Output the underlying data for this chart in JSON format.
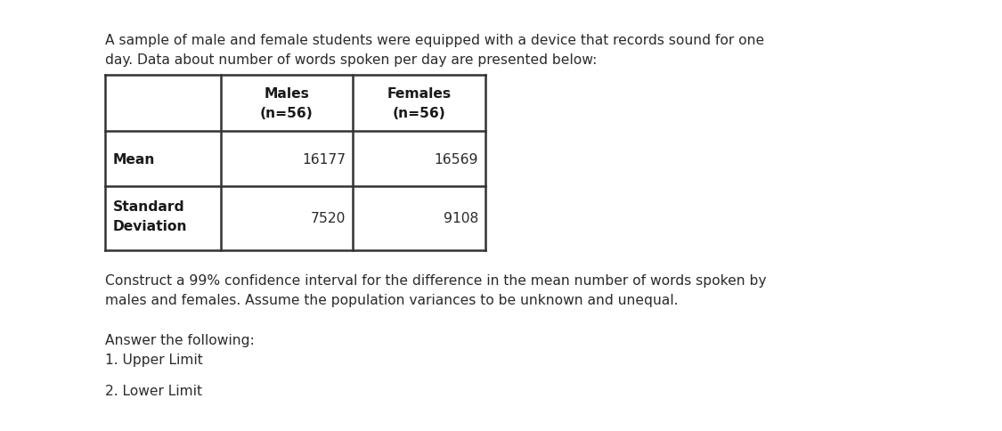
{
  "intro_text_line1": "A sample of male and female students were equipped with a device that records sound for one",
  "intro_text_line2": "day. Data about number of words spoken per day are presented below:",
  "males_header": "Males\n(n=56)",
  "females_header": "Females\n(n=56)",
  "row1_label": "Mean",
  "row2_label_1": "Standard",
  "row2_label_2": "Deviation",
  "males_values": [
    "16177",
    "7520"
  ],
  "females_values": [
    "16569",
    "9108"
  ],
  "question_line1": "Construct a 99% confidence interval for the difference in the mean number of words spoken by",
  "question_line2": "males and females. Assume the population variances to be unknown and unequal.",
  "answer_header": "Answer the following:",
  "answer_1": "1. Upper Limit",
  "answer_2": "2. Lower Limit",
  "bg_color": "#ffffff",
  "text_color": "#2b2b2b",
  "bold_color": "#1a1a1a",
  "table_line_color": "#333333",
  "font_size": 11.2
}
